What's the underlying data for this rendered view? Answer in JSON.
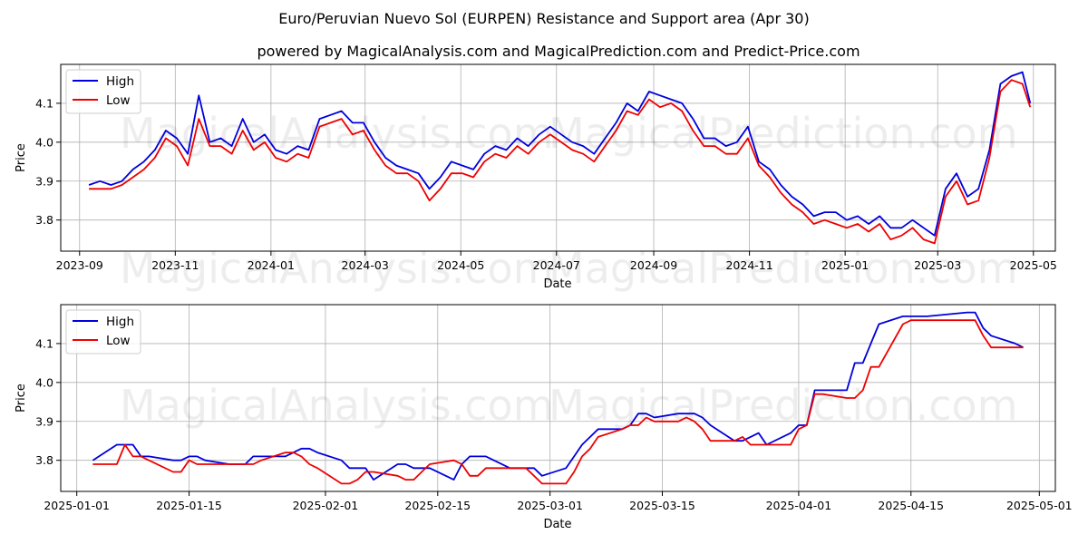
{
  "title": "Euro/Peruvian Nuevo Sol (EURPEN) Resistance and Support area (Apr 30)",
  "subtitle": "powered by MagicalAnalysis.com and MagicalPrediction.com and Predict-Price.com",
  "watermark_left": "MagicalAnalysis.com",
  "watermark_right": "MagicalPrediction.com",
  "colors": {
    "high": "#0000dd",
    "low": "#ee0000",
    "grid": "#b0b0b0"
  },
  "chart_data": [
    {
      "type": "line",
      "xlabel": "Date",
      "ylabel": "Price",
      "xlim": [
        "2023-08-20",
        "2025-05-15"
      ],
      "ylim": [
        3.72,
        4.2
      ],
      "xticks": [
        "2023-09",
        "2023-11",
        "2024-01",
        "2024-03",
        "2024-05",
        "2024-07",
        "2024-09",
        "2024-11",
        "2025-01",
        "2025-03",
        "2025-05"
      ],
      "yticks": [
        3.8,
        3.9,
        4.0,
        4.1
      ],
      "grid": true,
      "legend": "top-left",
      "series": [
        {
          "name": "High",
          "color": "#0000dd",
          "x": [
            "2023-09-07",
            "2023-09-14",
            "2023-09-21",
            "2023-09-28",
            "2023-10-05",
            "2023-10-12",
            "2023-10-19",
            "2023-10-26",
            "2023-11-02",
            "2023-11-09",
            "2023-11-16",
            "2023-11-23",
            "2023-11-30",
            "2023-12-07",
            "2023-12-14",
            "2023-12-21",
            "2023-12-28",
            "2024-01-04",
            "2024-01-11",
            "2024-01-18",
            "2024-01-25",
            "2024-02-01",
            "2024-02-08",
            "2024-02-15",
            "2024-02-22",
            "2024-02-29",
            "2024-03-07",
            "2024-03-14",
            "2024-03-21",
            "2024-03-28",
            "2024-04-04",
            "2024-04-11",
            "2024-04-18",
            "2024-04-25",
            "2024-05-02",
            "2024-05-09",
            "2024-05-16",
            "2024-05-23",
            "2024-05-30",
            "2024-06-06",
            "2024-06-13",
            "2024-06-20",
            "2024-06-27",
            "2024-07-04",
            "2024-07-11",
            "2024-07-18",
            "2024-07-25",
            "2024-08-01",
            "2024-08-08",
            "2024-08-15",
            "2024-08-22",
            "2024-08-29",
            "2024-09-05",
            "2024-09-12",
            "2024-09-19",
            "2024-09-26",
            "2024-10-03",
            "2024-10-10",
            "2024-10-17",
            "2024-10-24",
            "2024-10-31",
            "2024-11-07",
            "2024-11-14",
            "2024-11-21",
            "2024-11-28",
            "2024-12-05",
            "2024-12-12",
            "2024-12-19",
            "2024-12-26",
            "2025-01-02",
            "2025-01-09",
            "2025-01-16",
            "2025-01-23",
            "2025-01-30",
            "2025-02-06",
            "2025-02-13",
            "2025-02-20",
            "2025-02-27",
            "2025-03-06",
            "2025-03-13",
            "2025-03-20",
            "2025-03-27",
            "2025-04-03",
            "2025-04-10",
            "2025-04-17",
            "2025-04-24",
            "2025-04-29"
          ],
          "values": [
            3.89,
            3.9,
            3.89,
            3.9,
            3.93,
            3.95,
            3.98,
            4.03,
            4.01,
            3.97,
            4.12,
            4.0,
            4.01,
            3.99,
            4.06,
            4.0,
            4.02,
            3.98,
            3.97,
            3.99,
            3.98,
            4.06,
            4.07,
            4.08,
            4.05,
            4.05,
            4.0,
            3.96,
            3.94,
            3.93,
            3.92,
            3.88,
            3.91,
            3.95,
            3.94,
            3.93,
            3.97,
            3.99,
            3.98,
            4.01,
            3.99,
            4.02,
            4.04,
            4.02,
            4.0,
            3.99,
            3.97,
            4.01,
            4.05,
            4.1,
            4.08,
            4.13,
            4.12,
            4.11,
            4.1,
            4.06,
            4.01,
            4.01,
            3.99,
            4.0,
            4.04,
            3.95,
            3.93,
            3.89,
            3.86,
            3.84,
            3.81,
            3.82,
            3.82,
            3.8,
            3.81,
            3.79,
            3.81,
            3.78,
            3.78,
            3.8,
            3.78,
            3.76,
            3.88,
            3.92,
            3.86,
            3.88,
            3.98,
            4.15,
            4.17,
            4.18,
            4.1
          ]
        },
        {
          "name": "Low",
          "color": "#ee0000",
          "x": [
            "2023-09-07",
            "2023-09-14",
            "2023-09-21",
            "2023-09-28",
            "2023-10-05",
            "2023-10-12",
            "2023-10-19",
            "2023-10-26",
            "2023-11-02",
            "2023-11-09",
            "2023-11-16",
            "2023-11-23",
            "2023-11-30",
            "2023-12-07",
            "2023-12-14",
            "2023-12-21",
            "2023-12-28",
            "2024-01-04",
            "2024-01-11",
            "2024-01-18",
            "2024-01-25",
            "2024-02-01",
            "2024-02-08",
            "2024-02-15",
            "2024-02-22",
            "2024-02-29",
            "2024-03-07",
            "2024-03-14",
            "2024-03-21",
            "2024-03-28",
            "2024-04-04",
            "2024-04-11",
            "2024-04-18",
            "2024-04-25",
            "2024-05-02",
            "2024-05-09",
            "2024-05-16",
            "2024-05-23",
            "2024-05-30",
            "2024-06-06",
            "2024-06-13",
            "2024-06-20",
            "2024-06-27",
            "2024-07-04",
            "2024-07-11",
            "2024-07-18",
            "2024-07-25",
            "2024-08-01",
            "2024-08-08",
            "2024-08-15",
            "2024-08-22",
            "2024-08-29",
            "2024-09-05",
            "2024-09-12",
            "2024-09-19",
            "2024-09-26",
            "2024-10-03",
            "2024-10-10",
            "2024-10-17",
            "2024-10-24",
            "2024-10-31",
            "2024-11-07",
            "2024-11-14",
            "2024-11-21",
            "2024-11-28",
            "2024-12-05",
            "2024-12-12",
            "2024-12-19",
            "2024-12-26",
            "2025-01-02",
            "2025-01-09",
            "2025-01-16",
            "2025-01-23",
            "2025-01-30",
            "2025-02-06",
            "2025-02-13",
            "2025-02-20",
            "2025-02-27",
            "2025-03-06",
            "2025-03-13",
            "2025-03-20",
            "2025-03-27",
            "2025-04-03",
            "2025-04-10",
            "2025-04-17",
            "2025-04-24",
            "2025-04-29"
          ],
          "values": [
            3.88,
            3.88,
            3.88,
            3.89,
            3.91,
            3.93,
            3.96,
            4.01,
            3.99,
            3.94,
            4.06,
            3.99,
            3.99,
            3.97,
            4.03,
            3.98,
            4.0,
            3.96,
            3.95,
            3.97,
            3.96,
            4.04,
            4.05,
            4.06,
            4.02,
            4.03,
            3.98,
            3.94,
            3.92,
            3.92,
            3.9,
            3.85,
            3.88,
            3.92,
            3.92,
            3.91,
            3.95,
            3.97,
            3.96,
            3.99,
            3.97,
            4.0,
            4.02,
            4.0,
            3.98,
            3.97,
            3.95,
            3.99,
            4.03,
            4.08,
            4.07,
            4.11,
            4.09,
            4.1,
            4.08,
            4.03,
            3.99,
            3.99,
            3.97,
            3.97,
            4.01,
            3.94,
            3.91,
            3.87,
            3.84,
            3.82,
            3.79,
            3.8,
            3.79,
            3.78,
            3.79,
            3.77,
            3.79,
            3.75,
            3.76,
            3.78,
            3.75,
            3.74,
            3.86,
            3.9,
            3.84,
            3.85,
            3.96,
            4.13,
            4.16,
            4.15,
            4.09
          ]
        }
      ]
    },
    {
      "type": "line",
      "xlabel": "Date",
      "ylabel": "Price",
      "xlim": [
        "2024-12-30",
        "2025-05-03"
      ],
      "ylim": [
        3.72,
        4.2
      ],
      "xticks": [
        "2025-01-01",
        "2025-01-15",
        "2025-02-01",
        "2025-02-15",
        "2025-03-01",
        "2025-03-15",
        "2025-04-01",
        "2025-04-15",
        "2025-05-01"
      ],
      "yticks": [
        3.8,
        3.9,
        4.0,
        4.1
      ],
      "grid": true,
      "legend": "top-left",
      "series": [
        {
          "name": "High",
          "color": "#0000dd",
          "x": [
            "2025-01-03",
            "2025-01-06",
            "2025-01-07",
            "2025-01-08",
            "2025-01-09",
            "2025-01-10",
            "2025-01-13",
            "2025-01-14",
            "2025-01-15",
            "2025-01-16",
            "2025-01-17",
            "2025-01-20",
            "2025-01-21",
            "2025-01-22",
            "2025-01-23",
            "2025-01-24",
            "2025-01-27",
            "2025-01-28",
            "2025-01-29",
            "2025-01-30",
            "2025-01-31",
            "2025-02-03",
            "2025-02-04",
            "2025-02-05",
            "2025-02-06",
            "2025-02-07",
            "2025-02-10",
            "2025-02-11",
            "2025-02-12",
            "2025-02-13",
            "2025-02-14",
            "2025-02-17",
            "2025-02-18",
            "2025-02-19",
            "2025-02-20",
            "2025-02-21",
            "2025-02-24",
            "2025-02-25",
            "2025-02-26",
            "2025-02-27",
            "2025-02-28",
            "2025-03-03",
            "2025-03-04",
            "2025-03-05",
            "2025-03-06",
            "2025-03-07",
            "2025-03-10",
            "2025-03-11",
            "2025-03-12",
            "2025-03-13",
            "2025-03-14",
            "2025-03-17",
            "2025-03-18",
            "2025-03-19",
            "2025-03-20",
            "2025-03-21",
            "2025-03-24",
            "2025-03-25",
            "2025-03-26",
            "2025-03-27",
            "2025-03-28",
            "2025-03-31",
            "2025-04-01",
            "2025-04-02",
            "2025-04-03",
            "2025-04-04",
            "2025-04-07",
            "2025-04-08",
            "2025-04-09",
            "2025-04-10",
            "2025-04-11",
            "2025-04-14",
            "2025-04-15",
            "2025-04-16",
            "2025-04-17",
            "2025-04-22",
            "2025-04-23",
            "2025-04-24",
            "2025-04-25",
            "2025-04-28",
            "2025-04-29"
          ],
          "values": [
            3.8,
            3.84,
            3.84,
            3.84,
            3.81,
            3.81,
            3.8,
            3.8,
            3.81,
            3.81,
            3.8,
            3.79,
            3.79,
            3.79,
            3.81,
            3.81,
            3.81,
            3.82,
            3.83,
            3.83,
            3.82,
            3.8,
            3.78,
            3.78,
            3.78,
            3.75,
            3.79,
            3.79,
            3.78,
            3.78,
            3.78,
            3.75,
            3.79,
            3.81,
            3.81,
            3.81,
            3.78,
            3.78,
            3.78,
            3.78,
            3.76,
            3.78,
            3.81,
            3.84,
            3.86,
            3.88,
            3.88,
            3.89,
            3.92,
            3.92,
            3.91,
            3.92,
            3.92,
            3.92,
            3.91,
            3.89,
            3.85,
            3.85,
            3.86,
            3.87,
            3.84,
            3.87,
            3.89,
            3.89,
            3.98,
            3.98,
            3.98,
            4.05,
            4.05,
            4.1,
            4.15,
            4.17,
            4.17,
            4.17,
            4.17,
            4.18,
            4.18,
            4.14,
            4.12,
            4.1,
            4.09
          ]
        },
        {
          "name": "Low",
          "color": "#ee0000",
          "x": [
            "2025-01-03",
            "2025-01-06",
            "2025-01-07",
            "2025-01-08",
            "2025-01-09",
            "2025-01-10",
            "2025-01-13",
            "2025-01-14",
            "2025-01-15",
            "2025-01-16",
            "2025-01-17",
            "2025-01-20",
            "2025-01-21",
            "2025-01-22",
            "2025-01-23",
            "2025-01-24",
            "2025-01-27",
            "2025-01-28",
            "2025-01-29",
            "2025-01-30",
            "2025-01-31",
            "2025-02-03",
            "2025-02-04",
            "2025-02-05",
            "2025-02-06",
            "2025-02-07",
            "2025-02-10",
            "2025-02-11",
            "2025-02-12",
            "2025-02-13",
            "2025-02-14",
            "2025-02-17",
            "2025-02-18",
            "2025-02-19",
            "2025-02-20",
            "2025-02-21",
            "2025-02-24",
            "2025-02-25",
            "2025-02-26",
            "2025-02-27",
            "2025-02-28",
            "2025-03-03",
            "2025-03-04",
            "2025-03-05",
            "2025-03-06",
            "2025-03-07",
            "2025-03-10",
            "2025-03-11",
            "2025-03-12",
            "2025-03-13",
            "2025-03-14",
            "2025-03-17",
            "2025-03-18",
            "2025-03-19",
            "2025-03-20",
            "2025-03-21",
            "2025-03-24",
            "2025-03-25",
            "2025-03-26",
            "2025-03-27",
            "2025-03-28",
            "2025-03-31",
            "2025-04-01",
            "2025-04-02",
            "2025-04-03",
            "2025-04-04",
            "2025-04-07",
            "2025-04-08",
            "2025-04-09",
            "2025-04-10",
            "2025-04-11",
            "2025-04-14",
            "2025-04-15",
            "2025-04-16",
            "2025-04-17",
            "2025-04-22",
            "2025-04-23",
            "2025-04-24",
            "2025-04-25",
            "2025-04-28",
            "2025-04-29"
          ],
          "values": [
            3.79,
            3.79,
            3.84,
            3.81,
            3.81,
            3.8,
            3.77,
            3.77,
            3.8,
            3.79,
            3.79,
            3.79,
            3.79,
            3.79,
            3.79,
            3.8,
            3.82,
            3.82,
            3.81,
            3.79,
            3.78,
            3.74,
            3.74,
            3.75,
            3.77,
            3.77,
            3.76,
            3.75,
            3.75,
            3.77,
            3.79,
            3.8,
            3.79,
            3.76,
            3.76,
            3.78,
            3.78,
            3.78,
            3.78,
            3.76,
            3.74,
            3.74,
            3.77,
            3.81,
            3.83,
            3.86,
            3.88,
            3.89,
            3.89,
            3.91,
            3.9,
            3.9,
            3.91,
            3.9,
            3.88,
            3.85,
            3.85,
            3.86,
            3.84,
            3.84,
            3.84,
            3.84,
            3.88,
            3.89,
            3.97,
            3.97,
            3.96,
            3.96,
            3.98,
            4.04,
            4.04,
            4.15,
            4.16,
            4.16,
            4.16,
            4.16,
            4.16,
            4.12,
            4.09,
            4.09,
            4.09
          ]
        }
      ]
    }
  ]
}
